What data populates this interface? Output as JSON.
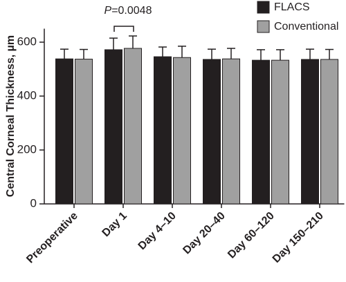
{
  "chart_data": {
    "type": "bar",
    "y_label": "Central Corneal Thickness, µm",
    "annotation": [
      "P",
      "=0.0048"
    ],
    "categories": [
      "Preoperative",
      "Day 1",
      "Day 4–10",
      "Day 20–40",
      "Day 60–120",
      "Day 150–210"
    ],
    "series": [
      {
        "name": "FLACS",
        "color": "#231f20",
        "values": [
          538,
          572,
          546,
          536,
          533,
          536
        ],
        "errors": [
          36,
          43,
          36,
          38,
          39,
          38
        ]
      },
      {
        "name": "Conventional",
        "color": "#a0a0a0",
        "values": [
          537,
          577,
          543,
          538,
          533,
          536
        ],
        "errors": [
          36,
          46,
          42,
          39,
          39,
          37
        ]
      }
    ],
    "ylim": [
      0,
      650
    ],
    "yticks": [
      0,
      200,
      400,
      600
    ],
    "legend": "top-right"
  }
}
